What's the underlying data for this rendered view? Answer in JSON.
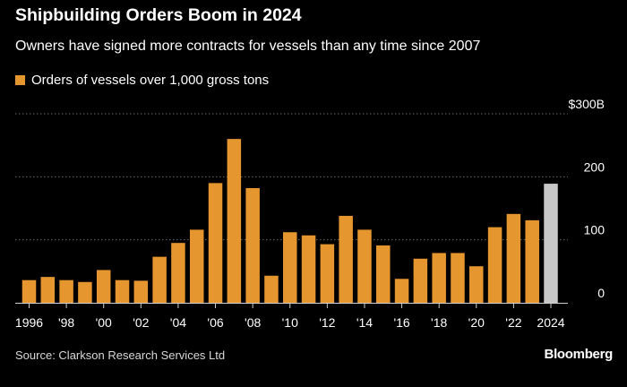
{
  "title": "Shipbuilding Orders Boom in 2024",
  "subtitle": "Owners have signed more contracts for vessels than any time since 2007",
  "source": "Source: Clarkson Research Services Ltd",
  "brand": "Bloomberg",
  "colors": {
    "bar": "#e6962e",
    "highlight": "#c8c8c8",
    "grid": "#6a6a6a",
    "axis": "#d0d0d0"
  },
  "chart_data": {
    "type": "bar",
    "title": "Shipbuilding Orders Boom in 2024",
    "xlabel": "",
    "ylabel": "",
    "unit_prefix": "$",
    "unit_suffix": "B",
    "ylim": [
      0,
      300
    ],
    "yticks": [
      {
        "value": 0,
        "label": "0"
      },
      {
        "value": 100,
        "label": "100"
      },
      {
        "value": 200,
        "label": "200"
      },
      {
        "value": 300,
        "label": "$300B"
      }
    ],
    "grid": true,
    "legend": {
      "label": "Orders of vessels over 1,000 gross tons",
      "position": "top-left"
    },
    "categories": [
      1996,
      1997,
      1998,
      1999,
      2000,
      2001,
      2002,
      2003,
      2004,
      2005,
      2006,
      2007,
      2008,
      2009,
      2010,
      2011,
      2012,
      2013,
      2014,
      2015,
      2016,
      2017,
      2018,
      2019,
      2020,
      2021,
      2022,
      2023,
      2024
    ],
    "values": [
      36,
      41,
      36,
      33,
      52,
      36,
      35,
      73,
      95,
      116,
      190,
      260,
      182,
      43,
      112,
      107,
      93,
      138,
      116,
      91,
      38,
      70,
      79,
      79,
      58,
      120,
      141,
      131,
      189
    ],
    "highlight_category": 2024,
    "xtick_labels": [
      {
        "year": 1996,
        "label": "1996"
      },
      {
        "year": 1998,
        "label": "'98"
      },
      {
        "year": 2000,
        "label": "'00"
      },
      {
        "year": 2002,
        "label": "'02"
      },
      {
        "year": 2004,
        "label": "'04"
      },
      {
        "year": 2006,
        "label": "'06"
      },
      {
        "year": 2008,
        "label": "'08"
      },
      {
        "year": 2010,
        "label": "'10"
      },
      {
        "year": 2012,
        "label": "'12"
      },
      {
        "year": 2014,
        "label": "'14"
      },
      {
        "year": 2016,
        "label": "'16"
      },
      {
        "year": 2018,
        "label": "'18"
      },
      {
        "year": 2020,
        "label": "'20"
      },
      {
        "year": 2022,
        "label": "'22"
      },
      {
        "year": 2024,
        "label": "2024"
      }
    ]
  }
}
